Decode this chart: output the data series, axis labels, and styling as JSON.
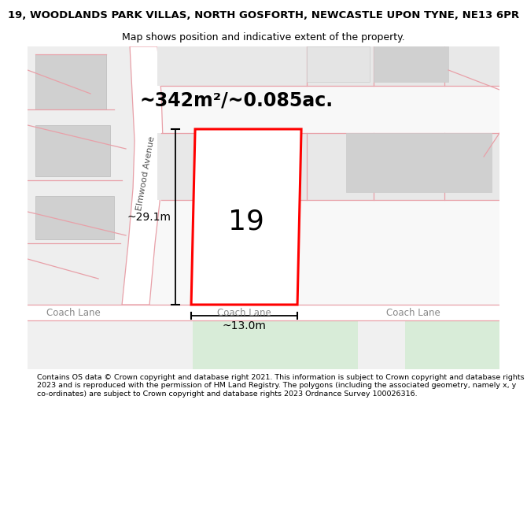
{
  "title_line1": "19, WOODLANDS PARK VILLAS, NORTH GOSFORTH, NEWCASTLE UPON TYNE, NE13 6PR",
  "title_line2": "Map shows position and indicative extent of the property.",
  "area_text": "~342m²/~0.085ac.",
  "height_label": "~29.1m",
  "width_label": "~13.0m",
  "number_label": "19",
  "street_label": "Elmwood Avenue",
  "footer_text": "Contains OS data © Crown copyright and database right 2021. This information is subject to Crown copyright and database rights 2023 and is reproduced with the permission of HM Land Registry. The polygons (including the associated geometry, namely x, y co-ordinates) are subject to Crown copyright and database rights 2023 Ordnance Survey 100026316.",
  "bg_map_color": "#f5f5f5",
  "road_color": "#ffffff",
  "road_stroke_color": "#e8a0a8",
  "plot_fill_color": "#ffffff",
  "plot_stroke_color": "#ff0000",
  "building_color": "#d0d0d0",
  "green_area_color": "#d8ecd8",
  "parcel_color": "#e8e8e8",
  "footer_bg": "#ffffff",
  "title_bg": "#ffffff"
}
